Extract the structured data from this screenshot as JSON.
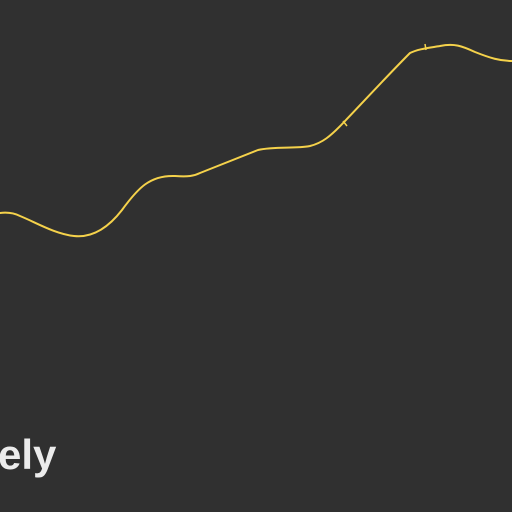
{
  "scene": {
    "background_color": "#303030",
    "trace": {
      "color": "#f5d24b"
    },
    "caption": {
      "text": "ely",
      "color": "#ececec"
    }
  }
}
